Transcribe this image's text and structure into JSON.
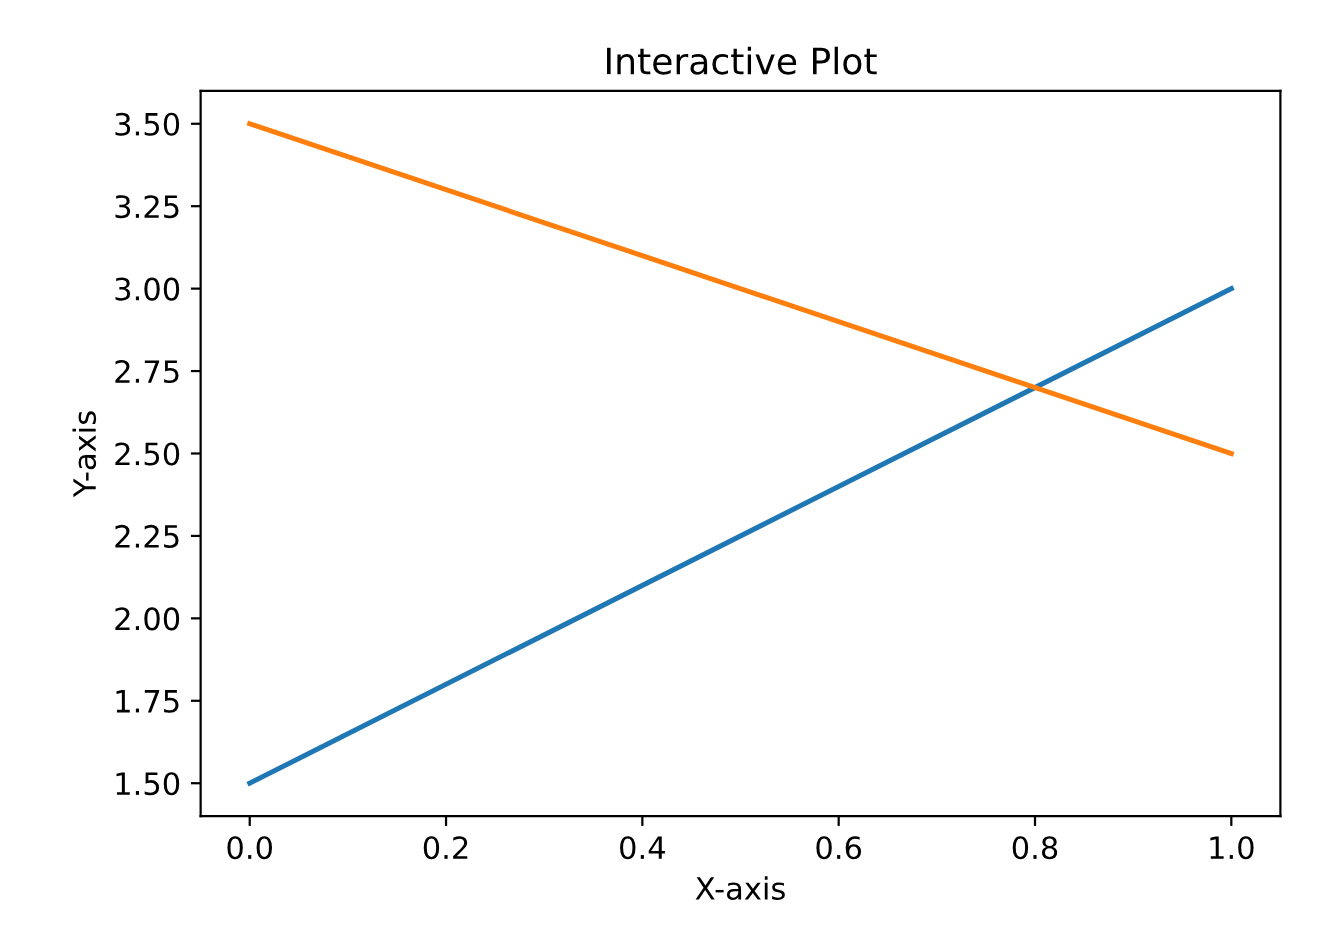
{
  "chart_data": {
    "type": "line",
    "title": "Interactive Plot",
    "xlabel": "X-axis",
    "ylabel": "Y-axis",
    "x": [
      0,
      1
    ],
    "series": [
      {
        "color": "#1f77b4",
        "values": [
          1.5,
          3.0
        ]
      },
      {
        "color": "#ff7f0e",
        "values": [
          3.5,
          2.5
        ]
      }
    ],
    "xlim": [
      -0.05,
      1.05
    ],
    "xticks": [
      {
        "value": 0,
        "label": "0.0"
      },
      {
        "value": 0.2,
        "label": "0.2"
      },
      {
        "value": 0.4,
        "label": "0.4"
      },
      {
        "value": 0.6,
        "label": "0.6"
      },
      {
        "value": 0.8,
        "label": "0.8"
      },
      {
        "value": 1,
        "label": "1.0"
      }
    ],
    "ylim": [
      1.4,
      3.6
    ],
    "yticks": [
      {
        "value": 1.5,
        "label": "1.50"
      },
      {
        "value": 1.75,
        "label": "1.75"
      },
      {
        "value": 2,
        "label": "2.00"
      },
      {
        "value": 2.25,
        "label": "2.25"
      },
      {
        "value": 2.5,
        "label": "2.50"
      },
      {
        "value": 2.75,
        "label": "2.75"
      },
      {
        "value": 3,
        "label": "3.00"
      },
      {
        "value": 3.25,
        "label": "3.25"
      },
      {
        "value": 3.5,
        "label": "3.50"
      }
    ],
    "grid": false,
    "marker": "none",
    "line_style": "solid"
  }
}
